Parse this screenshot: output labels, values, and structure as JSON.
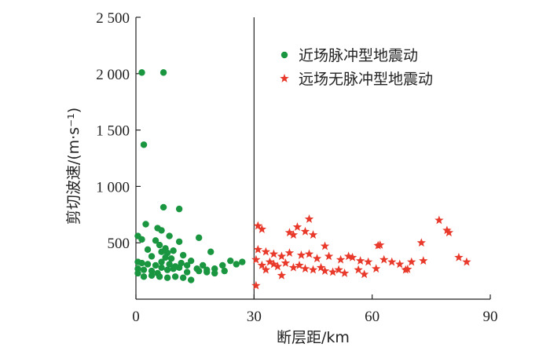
{
  "chart_data": {
    "type": "scatter",
    "title": "",
    "xlabel": "断层距/km",
    "ylabel": "剪切波速/(m·s⁻¹)",
    "xlim": [
      0,
      90
    ],
    "ylim": [
      0,
      2500
    ],
    "xticks": [
      0,
      30,
      60,
      90
    ],
    "xtick_labels": [
      "0",
      "30",
      "60",
      "90"
    ],
    "yticks": [
      500,
      1000,
      1500,
      2000,
      2500
    ],
    "ytick_labels": [
      "500",
      "1 000",
      "1 500",
      "2 000",
      "2 500"
    ],
    "reference_line_x": 30,
    "legend_position": "top-right",
    "grid": false,
    "series": [
      {
        "name": "近场脉冲型地震动",
        "marker": "circle",
        "color": "#1a9641",
        "points": [
          [
            1.5,
            2010
          ],
          [
            7,
            2010
          ],
          [
            2,
            1370
          ],
          [
            7,
            815
          ],
          [
            11,
            800
          ],
          [
            2.5,
            665
          ],
          [
            5.5,
            630
          ],
          [
            6.5,
            610
          ],
          [
            8.5,
            560
          ],
          [
            5.0,
            520
          ],
          [
            11,
            510
          ],
          [
            16,
            545
          ],
          [
            0.5,
            560
          ],
          [
            1.5,
            530
          ],
          [
            6,
            480
          ],
          [
            7.5,
            450
          ],
          [
            3,
            440
          ],
          [
            6.5,
            420
          ],
          [
            8,
            410
          ],
          [
            9.5,
            430
          ],
          [
            19,
            420
          ],
          [
            4,
            380
          ],
          [
            7.5,
            370
          ],
          [
            9,
            360
          ],
          [
            12,
            390
          ],
          [
            0.5,
            330
          ],
          [
            1.5,
            320
          ],
          [
            3,
            310
          ],
          [
            5,
            300
          ],
          [
            6.5,
            330
          ],
          [
            8.5,
            310
          ],
          [
            10,
            290
          ],
          [
            11.5,
            320
          ],
          [
            13,
            300
          ],
          [
            14,
            340
          ],
          [
            17,
            300
          ],
          [
            18,
            260
          ],
          [
            20,
            270
          ],
          [
            22,
            300
          ],
          [
            24,
            340
          ],
          [
            27,
            330
          ],
          [
            0.5,
            270
          ],
          [
            2,
            260
          ],
          [
            4,
            250
          ],
          [
            5.5,
            230
          ],
          [
            6.5,
            280
          ],
          [
            8,
            260
          ],
          [
            9.5,
            270
          ],
          [
            11,
            280
          ],
          [
            13,
            240
          ],
          [
            15.5,
            270
          ],
          [
            18,
            240
          ],
          [
            20,
            230
          ],
          [
            22.5,
            250
          ],
          [
            0.5,
            230
          ],
          [
            2,
            200
          ],
          [
            4,
            210
          ],
          [
            6,
            200
          ],
          [
            8,
            190
          ],
          [
            10,
            200
          ],
          [
            12,
            190
          ],
          [
            14,
            170
          ],
          [
            16,
            250
          ],
          [
            25.5,
            310
          ]
        ]
      },
      {
        "name": "远场无脉冲型地震动",
        "marker": "star",
        "color": "#e8392b",
        "points": [
          [
            44,
            710
          ],
          [
            77,
            700
          ],
          [
            79,
            610
          ],
          [
            79.5,
            590
          ],
          [
            31,
            650
          ],
          [
            32,
            620
          ],
          [
            41,
            640
          ],
          [
            43,
            600
          ],
          [
            39,
            590
          ],
          [
            40,
            570
          ],
          [
            45,
            570
          ],
          [
            62,
            480
          ],
          [
            61.5,
            475
          ],
          [
            72.5,
            500
          ],
          [
            48,
            470
          ],
          [
            31,
            440
          ],
          [
            33,
            420
          ],
          [
            35,
            400
          ],
          [
            37,
            380
          ],
          [
            39,
            410
          ],
          [
            42,
            390
          ],
          [
            44,
            400
          ],
          [
            46,
            360
          ],
          [
            49,
            380
          ],
          [
            52,
            350
          ],
          [
            54,
            380
          ],
          [
            55,
            370
          ],
          [
            57,
            340
          ],
          [
            59,
            330
          ],
          [
            63,
            350
          ],
          [
            65,
            330
          ],
          [
            67,
            310
          ],
          [
            70,
            330
          ],
          [
            73,
            340
          ],
          [
            82,
            370
          ],
          [
            84,
            330
          ],
          [
            30.5,
            350
          ],
          [
            32,
            300
          ],
          [
            34,
            330
          ],
          [
            36,
            290
          ],
          [
            38,
            320
          ],
          [
            40,
            280
          ],
          [
            41.5,
            300
          ],
          [
            43,
            270
          ],
          [
            45,
            260
          ],
          [
            47,
            280
          ],
          [
            48,
            250
          ],
          [
            50,
            240
          ],
          [
            51.5,
            260
          ],
          [
            53,
            230
          ],
          [
            56.5,
            260
          ],
          [
            58,
            220
          ],
          [
            61,
            270
          ],
          [
            69,
            265
          ],
          [
            68.5,
            260
          ],
          [
            33,
            260
          ],
          [
            35,
            310
          ],
          [
            30.5,
            120
          ],
          [
            37,
            210
          ]
        ]
      }
    ]
  }
}
